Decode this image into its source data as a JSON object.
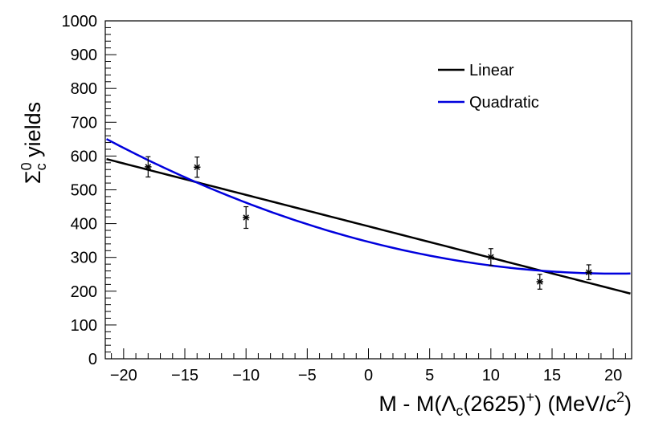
{
  "chart_data": {
    "type": "scatter",
    "title": "",
    "xlabel_parts": {
      "pre": "M - M(",
      "lambda": "Λ",
      "lambda_sub": "c",
      "mid": "(2625)",
      "plus": "+",
      "post": ") (MeV/",
      "c": "c",
      "sq": "2",
      "close": ")"
    },
    "ylabel_parts": {
      "sigma": "Σ",
      "sup": "0",
      "sub": "c",
      "rest": " yields"
    },
    "xlim": [
      -21.5,
      21.5
    ],
    "ylim": [
      0,
      1000
    ],
    "xticks": [
      -20,
      -15,
      -10,
      -5,
      0,
      5,
      10,
      15,
      20
    ],
    "yticks": [
      0,
      100,
      200,
      300,
      400,
      500,
      600,
      700,
      800,
      900,
      1000
    ],
    "xtick_labels": [
      "−20",
      "−15",
      "−10",
      "−5",
      "0",
      "5",
      "10",
      "15",
      "20"
    ],
    "ytick_labels": [
      "0",
      "100",
      "200",
      "300",
      "400",
      "500",
      "600",
      "700",
      "800",
      "900",
      "1000"
    ],
    "points": [
      {
        "x": -18,
        "y": 568,
        "err": 30
      },
      {
        "x": -14,
        "y": 567,
        "err": 30
      },
      {
        "x": -10,
        "y": 418,
        "err": 32
      },
      {
        "x": 10,
        "y": 301,
        "err": 25
      },
      {
        "x": 14,
        "y": 228,
        "err": 22
      },
      {
        "x": 18,
        "y": 256,
        "err": 22
      }
    ],
    "series": [
      {
        "name": "Linear",
        "color": "#000000",
        "kind": "linear",
        "coeffs": [
          392,
          -9.3
        ]
      },
      {
        "name": "Quadratic",
        "color": "#0000dd",
        "kind": "quadratic",
        "coeffs": [
          346,
          -9.3,
          0.23
        ]
      }
    ],
    "legend": {
      "position": "top-right",
      "entries": [
        "Linear",
        "Quadratic"
      ]
    }
  }
}
